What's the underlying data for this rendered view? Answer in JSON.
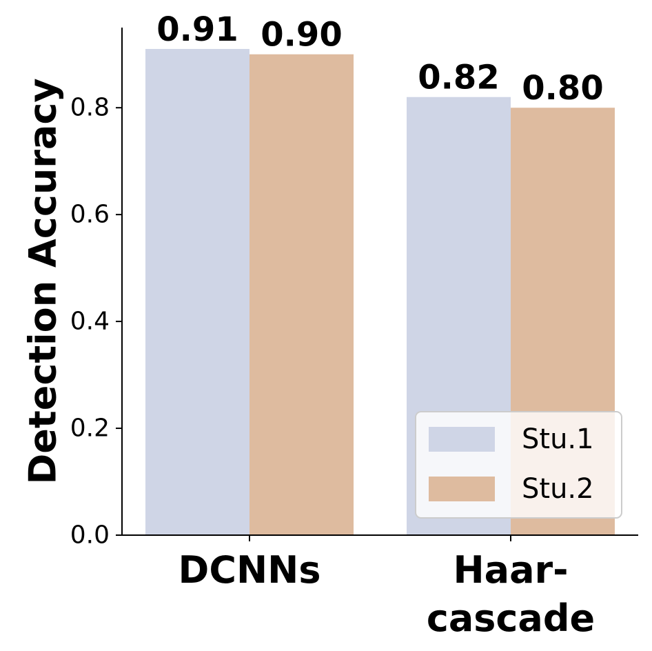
{
  "chart_data": {
    "type": "bar",
    "categories": [
      "DCNNs",
      "Haar-\ncascade"
    ],
    "series": [
      {
        "name": "Stu.1",
        "values": [
          0.91,
          0.82
        ],
        "labels": [
          "0.91",
          "0.82"
        ],
        "color": "#cfd5e6"
      },
      {
        "name": "Stu.2",
        "values": [
          0.9,
          0.8
        ],
        "labels": [
          "0.90",
          "0.80"
        ],
        "color": "#debb9f"
      }
    ],
    "title": "",
    "xlabel": "",
    "ylabel": "Detection Accuracy",
    "ylim": [
      0,
      0.95
    ],
    "yticks": [
      0.0,
      0.2,
      0.4,
      0.6,
      0.8
    ],
    "ytick_labels": [
      "0.0",
      "0.2",
      "0.4",
      "0.6",
      "0.8"
    ],
    "legend": {
      "position": "lower-right",
      "entries": [
        "Stu.1",
        "Stu.2"
      ]
    },
    "grid": false
  }
}
